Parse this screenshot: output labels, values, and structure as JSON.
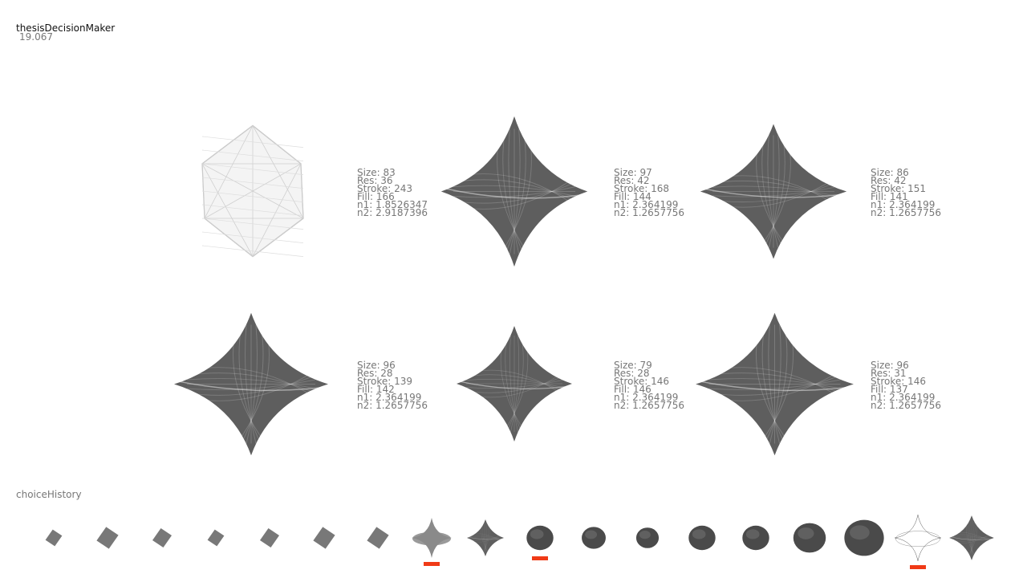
{
  "app": {
    "title": "thesisDecisionMaker",
    "fps": "19.067"
  },
  "colors": {
    "marker": "#f03a17",
    "shape_dark": "#5e5e5e",
    "shape_mid": "#787878",
    "wire": "#ffffff"
  },
  "choices": [
    {
      "icon": "wireframe-octahedron-shape",
      "params": [
        "Size: 83",
        "Res: 36",
        "Stroke: 243",
        "Fill: 166",
        "n1: 1.8526347",
        "n2: 2.9187396"
      ]
    },
    {
      "icon": "concave-diamond-shape",
      "params": [
        "Size: 97",
        "Res: 42",
        "Stroke: 168",
        "Fill: 144",
        "n1: 2.364199",
        "n2: 1.2657756"
      ]
    },
    {
      "icon": "concave-diamond-shape",
      "params": [
        "Size: 86",
        "Res: 42",
        "Stroke: 151",
        "Fill: 141",
        "n1: 2.364199",
        "n2: 1.2657756"
      ]
    },
    {
      "icon": "concave-diamond-shape",
      "params": [
        "Size: 96",
        "Res: 28",
        "Stroke: 139",
        "Fill: 142",
        "n1: 2.364199",
        "n2: 1.2657756"
      ]
    },
    {
      "icon": "concave-diamond-shape",
      "params": [
        "Size: 79",
        "Res: 28",
        "Stroke: 146",
        "Fill: 146",
        "n1: 2.364199",
        "n2: 1.2657756"
      ]
    },
    {
      "icon": "concave-diamond-shape",
      "params": [
        "Size: 96",
        "Res: 31",
        "Stroke: 146",
        "Fill: 137",
        "n1: 2.364199",
        "n2: 1.2657756"
      ]
    }
  ],
  "history": {
    "label": "choiceHistory",
    "selected_indices": [
      7,
      9,
      16
    ],
    "items": [
      {
        "icon": "small-diamond-shape"
      },
      {
        "icon": "small-diamond-shape"
      },
      {
        "icon": "small-diamond-shape"
      },
      {
        "icon": "small-diamond-shape"
      },
      {
        "icon": "small-diamond-shape"
      },
      {
        "icon": "small-diamond-shape"
      },
      {
        "icon": "small-diamond-shape"
      },
      {
        "icon": "spiky-star-shape"
      },
      {
        "icon": "concave-diamond-shape"
      },
      {
        "icon": "dark-sphere-shape"
      },
      {
        "icon": "dark-sphere-shape"
      },
      {
        "icon": "dark-sphere-shape"
      },
      {
        "icon": "dark-sphere-shape"
      },
      {
        "icon": "dark-sphere-shape"
      },
      {
        "icon": "dark-sphere-shape"
      },
      {
        "icon": "dark-sphere-shape"
      },
      {
        "icon": "wireframe-star-shape"
      },
      {
        "icon": "concave-diamond-shape"
      }
    ]
  }
}
